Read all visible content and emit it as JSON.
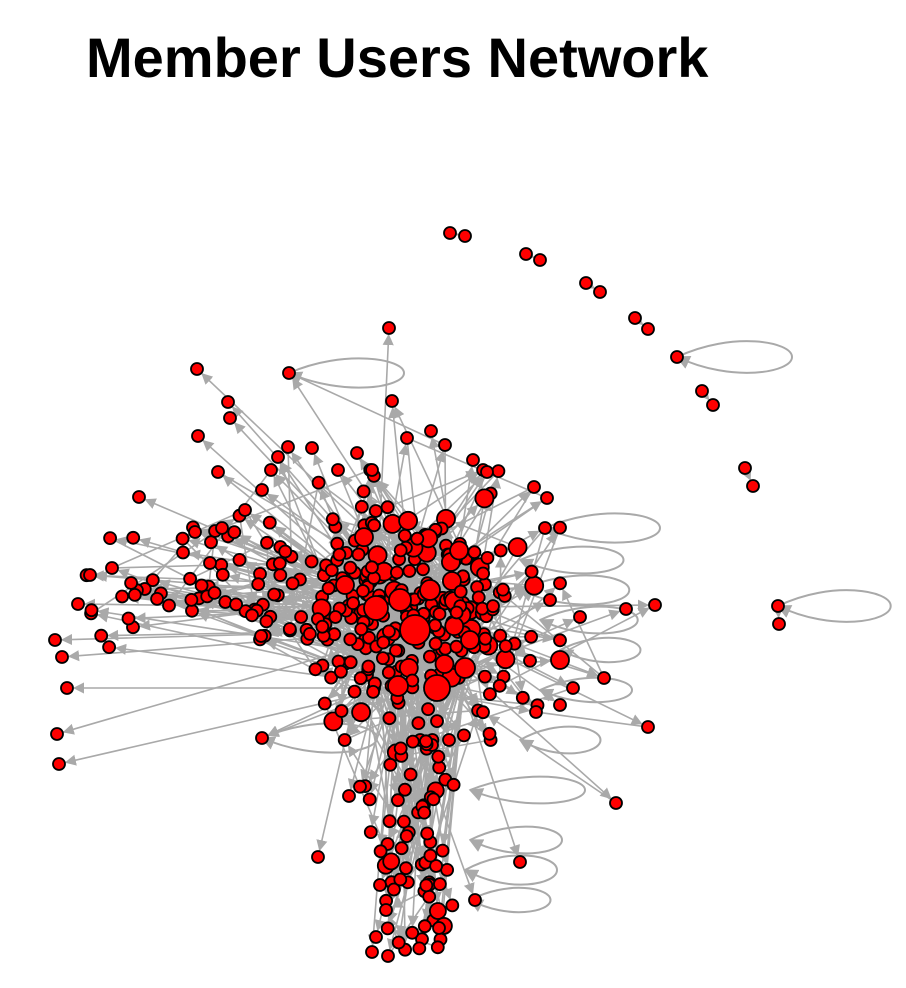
{
  "title": "Member Users Network",
  "colors": {
    "node_fill": "#ff0000",
    "node_stroke": "#000000",
    "edge": "#a9a9a9",
    "background": "#ffffff"
  },
  "graph": {
    "directed": true,
    "node_shape": "circle",
    "edge_arrows": true,
    "has_self_loops": true
  }
}
